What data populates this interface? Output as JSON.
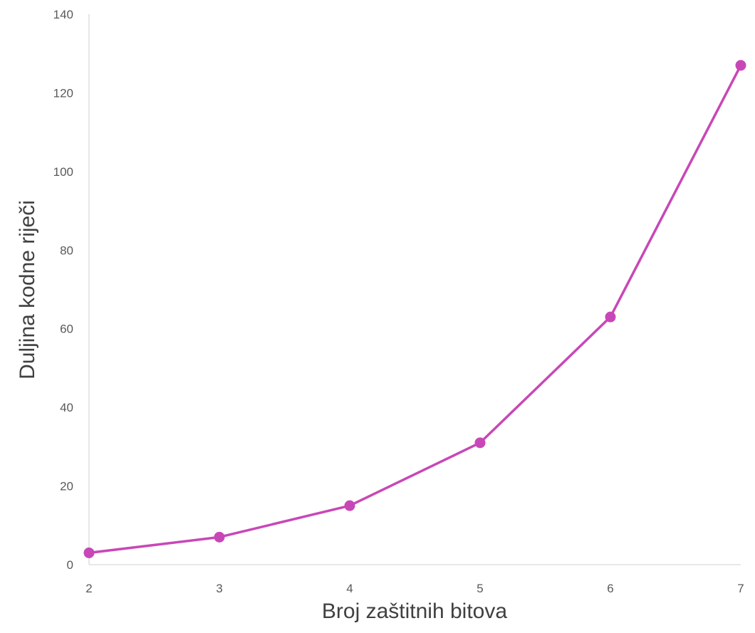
{
  "chart_data": {
    "type": "line",
    "title": "",
    "xlabel": "Broj zaštitnih bitova",
    "ylabel": "Duljina kodne riječi",
    "x": [
      2,
      3,
      4,
      5,
      6,
      7
    ],
    "series": [
      {
        "values": [
          3,
          7,
          15,
          31,
          63,
          127
        ],
        "color": "#C847B7"
      }
    ],
    "xlim": [
      2,
      7
    ],
    "ylim": [
      0,
      140
    ],
    "yticks": [
      0,
      20,
      40,
      60,
      80,
      100,
      120,
      140
    ],
    "xticks": [
      2,
      3,
      4,
      5,
      6,
      7
    ],
    "grid": false,
    "markers": true
  }
}
